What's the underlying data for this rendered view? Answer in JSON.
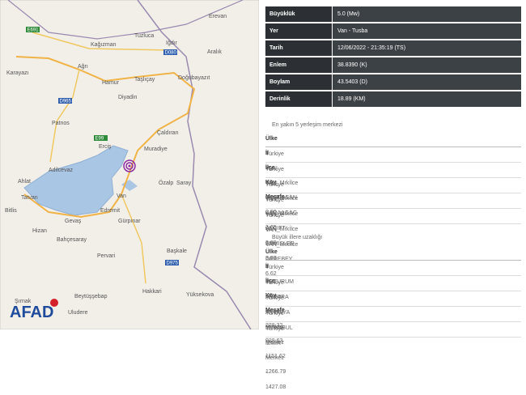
{
  "map": {
    "logo": "AFAD",
    "labels": [
      "Erevan",
      "Kağızman",
      "Tuzluca",
      "Iğdır",
      "Ağrı",
      "Karayazı",
      "Hamur",
      "Taşlıçay",
      "Diyadin",
      "Doğubayazıt",
      "Aralık",
      "Patnos",
      "Çaldıran",
      "Erciş",
      "Muradiye",
      "Adilcevaz",
      "Ahlat",
      "Van",
      "Özalp",
      "Saray",
      "Tatvan",
      "Edremit",
      "Gürpınar",
      "Bitlis",
      "Gevaş",
      "Hizan",
      "Bahçesaray",
      "Başkale",
      "Hakkari",
      "Yüksekova",
      "Şırnak",
      "Beytüşşebap",
      "Uludere",
      "Pervari"
    ],
    "roads": [
      "E691",
      "D080",
      "D965",
      "E99",
      "D975"
    ]
  },
  "info": {
    "rows": [
      [
        "Büyüklük",
        "5.0 (Mw)"
      ],
      [
        "Yer",
        "Van - Tusba"
      ],
      [
        "Tarih",
        "12/06/2022 - 21:35:19 (TS)"
      ],
      [
        "Enlem",
        "38.8390 (K)"
      ],
      [
        "Boylam",
        "43.5403 (D)"
      ],
      [
        "Derinlik",
        "18.89 (KM)"
      ]
    ]
  },
  "nearest": {
    "title": "En yakın 5 yerleşim merkezi",
    "header": [
      "Ülke",
      "İl",
      "İlçe",
      "Köy",
      "Mesafe"
    ],
    "rows": [
      [
        "Türkiye",
        "VAN",
        "VAN_Mrkİlce",
        "BAGDASAN",
        "2.90"
      ],
      [
        "Türkiye",
        "VAN",
        "VAN_Mrkİlce",
        "KARAAGAC",
        "3.65"
      ],
      [
        "Türkiye",
        "VAN",
        "VAN_Mrkİlce",
        "AKCIFT",
        "3.88"
      ],
      [
        "Türkiye",
        "VAN",
        "VAN_Mrkİlce",
        "ERMISLER",
        "3.93"
      ],
      [
        "Türkiye",
        "VAN",
        "VAN_Mrkİlce",
        "DEREBEY",
        "6.62"
      ]
    ]
  },
  "cities": {
    "title": "Büyük illere uzaklığı",
    "header": [
      "Ülke",
      "İl",
      "İlçe",
      "Köy",
      "Mesafe"
    ],
    "rows": [
      [
        "Türkiye",
        "ERZURUM",
        "Merkez",
        "-",
        "228.32"
      ],
      [
        "Türkiye",
        "ANKARA",
        "Merkez",
        "-",
        "928.63"
      ],
      [
        "Türkiye",
        "ANTALYA",
        "Merkez",
        "-",
        "1151.62"
      ],
      [
        "Türkiye",
        "ISTANBUL",
        "Merkez",
        "-",
        "1266.79"
      ],
      [
        "Türkiye",
        "IZMIR",
        "Merkez",
        "-",
        "1427.08"
      ]
    ]
  }
}
